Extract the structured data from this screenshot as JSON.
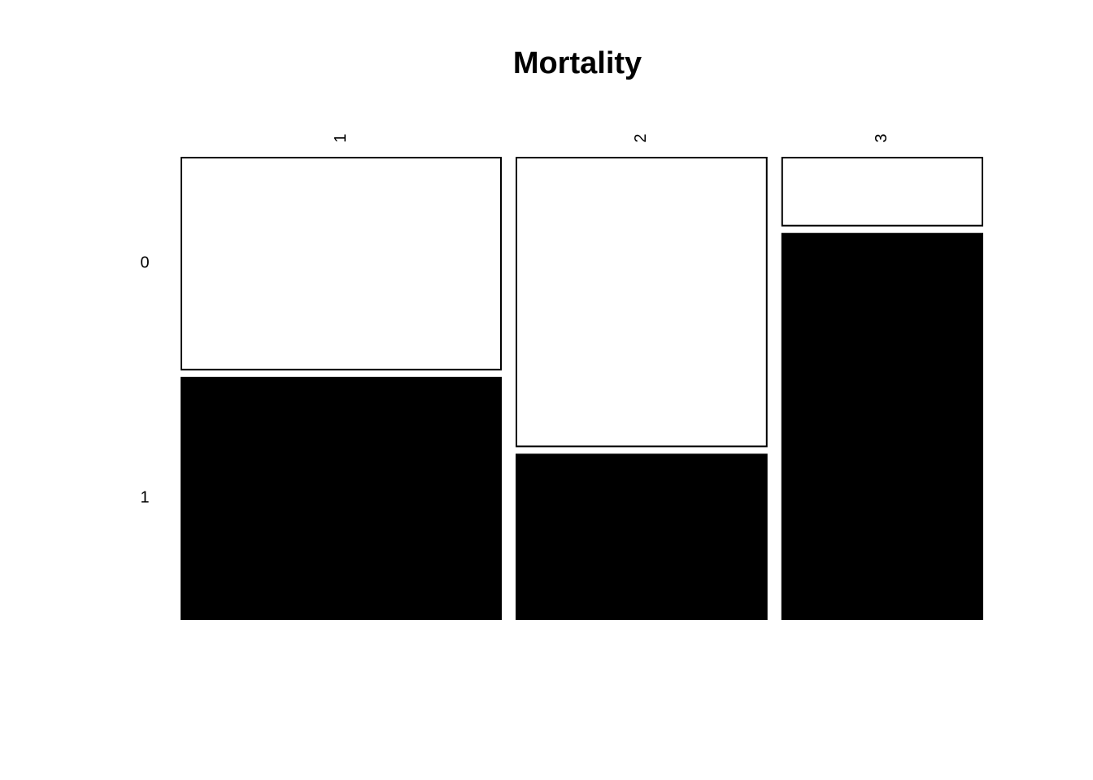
{
  "chart_data": {
    "type": "mosaic",
    "title": "Mortality",
    "categories": [
      "1",
      "2",
      "3"
    ],
    "series": [
      {
        "name": "0",
        "color": "#ffffff",
        "values": [
          19.4,
          20.7,
          3.9
        ]
      },
      {
        "name": "1",
        "color": "#000000",
        "values": [
          22.1,
          11.8,
          22.1
        ]
      }
    ]
  }
}
